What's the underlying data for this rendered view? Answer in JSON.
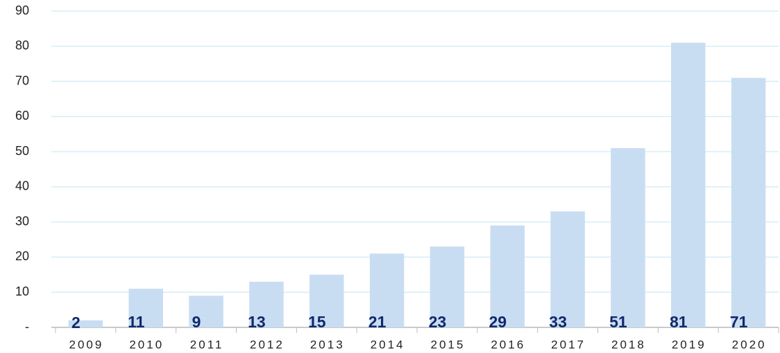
{
  "chart_data": {
    "type": "bar",
    "categories": [
      "2009",
      "2010",
      "2011",
      "2012",
      "2013",
      "2014",
      "2015",
      "2016",
      "2017",
      "2018",
      "2019",
      "2020"
    ],
    "values": [
      2,
      11,
      9,
      13,
      15,
      21,
      23,
      29,
      33,
      51,
      81,
      71
    ],
    "color": "#c9ddf2",
    "label_color": "#10296b",
    "ylim": [
      0,
      90
    ],
    "yticks": [
      {
        "value": 0,
        "label": "-"
      },
      10,
      20,
      30,
      40,
      50,
      60,
      70,
      80,
      90
    ],
    "grid": true
  }
}
